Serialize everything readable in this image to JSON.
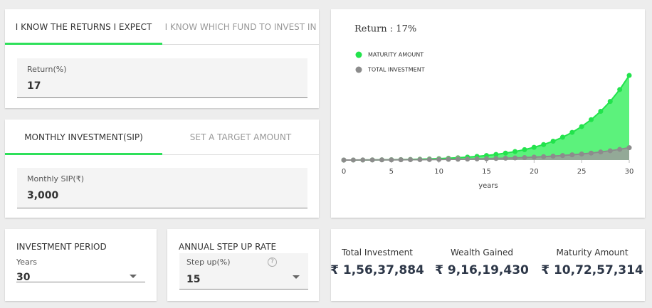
{
  "return_tabs": {
    "tabs": [
      "I KNOW THE RETURNS I EXPECT",
      "I KNOW WHICH FUND TO INVEST IN"
    ]
  },
  "return_field": {
    "label": "Return(%)",
    "value": "17"
  },
  "investment_tabs": {
    "tabs": [
      "MONTHLY INVESTMENT(SIP)",
      "SET A TARGET AMOUNT"
    ]
  },
  "sip_field": {
    "label": "Monthly SIP(₹)",
    "value": "3,000"
  },
  "investment_period": {
    "title": "INVESTMENT PERIOD",
    "label": "Years",
    "value": "30"
  },
  "step_up": {
    "title": "ANNUAL STEP UP RATE",
    "label": "Step up(%)",
    "value": "15",
    "help_icon": "?"
  },
  "summary": [
    {
      "label": "Total Investment",
      "value": "₹ 1,56,37,884"
    },
    {
      "label": "Wealth Gained",
      "value": "₹ 9,16,19,430"
    },
    {
      "label": "Maturity Amount",
      "value": "₹ 10,72,57,314"
    }
  ],
  "chart_data": {
    "type": "area",
    "title": "Return : 17%",
    "x_label": "years",
    "x": [
      0,
      1,
      2,
      3,
      4,
      5,
      6,
      7,
      8,
      9,
      10,
      11,
      12,
      13,
      14,
      15,
      16,
      17,
      18,
      19,
      20,
      21,
      22,
      23,
      24,
      25,
      26,
      27,
      28,
      29,
      30
    ],
    "xlim": [
      0,
      30
    ],
    "xticks": [
      0,
      5,
      10,
      15,
      20,
      25,
      30
    ],
    "ylim": [
      0,
      110000000
    ],
    "series": [
      {
        "name": "MATURITY AMOUNT",
        "color": "#22e34c",
        "fill": "#5cf27c",
        "values": [
          0,
          48000,
          111000,
          193000,
          299000,
          433000,
          603000,
          816000,
          1082000,
          1412000,
          1820000,
          2324000,
          2941000,
          3697000,
          4620000,
          5743000,
          7109000,
          8765000,
          10770000,
          13193000,
          16117000,
          19639000,
          23878000,
          28972000,
          35088000,
          42422000,
          51209000,
          61725000,
          74301000,
          89326000,
          107257314
        ]
      },
      {
        "name": "TOTAL INVESTMENT",
        "color": "#8c8c8c",
        "fill": "#9c9c9c",
        "values": [
          0,
          36000,
          77400,
          125016,
          179760,
          242736,
          315144,
          398400,
          494160,
          604296,
          730944,
          876576,
          1044072,
          1236672,
          1458168,
          1712904,
          2005824,
          2342712,
          2730120,
          3175632,
          3687960,
          4277160,
          4954728,
          5733960,
          6630048,
          7660560,
          8845632,
          10208472,
          11775744,
          13578120,
          15637884
        ]
      }
    ]
  }
}
